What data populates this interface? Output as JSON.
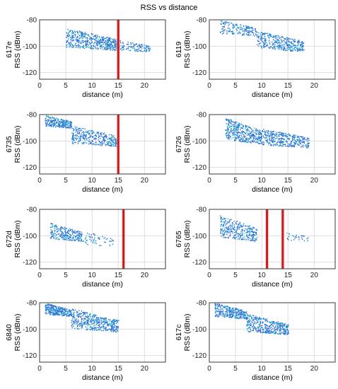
{
  "figure": {
    "title": "RSS vs distance"
  },
  "colors": {
    "point": "#2b6fd6",
    "point_alt": "#22cccc",
    "line": "#cc1a1a",
    "line_glow": "#ffb6c1"
  },
  "chart_data": [
    {
      "type": "scatter",
      "id": "617e",
      "ylabel": "617e\nRSS (dBm)",
      "xlabel": "distance (m)",
      "xlim": [
        0,
        24
      ],
      "ylim": [
        -125,
        -80
      ],
      "xticks": [
        0,
        5,
        10,
        15,
        20
      ],
      "yticks": [
        -80,
        -100,
        -120
      ],
      "grid": true,
      "show_xlabel": true,
      "vlines": [
        15
      ],
      "clusters": [
        {
          "x": [
            5,
            15
          ],
          "y": [
            -103,
            -86
          ],
          "n": 520
        },
        {
          "x": [
            15,
            21
          ],
          "y": [
            -104,
            -95
          ],
          "n": 120
        }
      ]
    },
    {
      "type": "scatter",
      "id": "6119",
      "ylabel": "6119\nRSS (dBm)",
      "xlabel": "distance (m)",
      "xlim": [
        0,
        24
      ],
      "ylim": [
        -125,
        -80
      ],
      "xticks": [
        0,
        5,
        10,
        15,
        20
      ],
      "yticks": [
        -80,
        -100,
        -120
      ],
      "grid": true,
      "show_xlabel": false,
      "vlines": [],
      "clusters": [
        {
          "x": [
            2,
            9
          ],
          "y": [
            -92,
            -80
          ],
          "n": 180
        },
        {
          "x": [
            9,
            18
          ],
          "y": [
            -104,
            -88
          ],
          "n": 360
        }
      ]
    },
    {
      "type": "scatter",
      "id": "6735",
      "ylabel": "6735\nRSS (dBm)",
      "xlabel": "distance (m)",
      "xlim": [
        0,
        24
      ],
      "ylim": [
        -125,
        -80
      ],
      "xticks": [
        0,
        5,
        10,
        15,
        20
      ],
      "yticks": [
        -80,
        -100,
        -120
      ],
      "grid": true,
      "show_xlabel": true,
      "vlines": [
        15
      ],
      "clusters": [
        {
          "x": [
            1,
            6
          ],
          "y": [
            -90,
            -80
          ],
          "n": 260
        },
        {
          "x": [
            6,
            15
          ],
          "y": [
            -104,
            -88
          ],
          "n": 360
        }
      ]
    },
    {
      "type": "scatter",
      "id": "6726",
      "ylabel": "6726\nRSS (dBm)",
      "xlabel": "distance (m)",
      "xlim": [
        0,
        24
      ],
      "ylim": [
        -125,
        -80
      ],
      "xticks": [
        0,
        5,
        10,
        15,
        20
      ],
      "yticks": [
        -80,
        -100,
        -120
      ],
      "grid": true,
      "show_xlabel": false,
      "vlines": [],
      "clusters": [
        {
          "x": [
            3,
            10
          ],
          "y": [
            -102,
            -82
          ],
          "n": 420
        },
        {
          "x": [
            10,
            19
          ],
          "y": [
            -105,
            -90
          ],
          "n": 360
        }
      ]
    },
    {
      "type": "scatter",
      "id": "672d",
      "ylabel": "672d\nRSS (dBm)",
      "xlabel": "distance (m)",
      "xlim": [
        0,
        24
      ],
      "ylim": [
        -125,
        -80
      ],
      "xticks": [
        0,
        5,
        10,
        15,
        20
      ],
      "yticks": [
        -80,
        -100,
        -120
      ],
      "grid": true,
      "show_xlabel": true,
      "vlines": [
        16
      ],
      "clusters": [
        {
          "x": [
            2,
            8
          ],
          "y": [
            -104,
            -90
          ],
          "n": 260
        },
        {
          "x": [
            8,
            14
          ],
          "y": [
            -108,
            -96
          ],
          "n": 60
        }
      ]
    },
    {
      "type": "scatter",
      "id": "6765",
      "ylabel": "6765\nRSS (dBm)",
      "xlabel": "distance (m)",
      "xlim": [
        0,
        24
      ],
      "ylim": [
        -125,
        -80
      ],
      "xticks": [
        0,
        5,
        10,
        15,
        20
      ],
      "yticks": [
        -80,
        -100,
        -120
      ],
      "grid": true,
      "show_xlabel": false,
      "vlines": [
        11,
        14
      ],
      "clusters": [
        {
          "x": [
            2,
            9
          ],
          "y": [
            -104,
            -84
          ],
          "n": 320
        },
        {
          "x": [
            14,
            19
          ],
          "y": [
            -104,
            -96
          ],
          "n": 30
        }
      ]
    },
    {
      "type": "scatter",
      "id": "6840",
      "ylabel": "6840\nRSS (dBm)",
      "xlabel": "distance (m)",
      "xlim": [
        0,
        24
      ],
      "ylim": [
        -125,
        -80
      ],
      "xticks": [
        0,
        5,
        10,
        15,
        20
      ],
      "yticks": [
        -80,
        -100,
        -120
      ],
      "grid": true,
      "show_xlabel": true,
      "vlines": [],
      "clusters": [
        {
          "x": [
            1,
            6
          ],
          "y": [
            -90,
            -80
          ],
          "n": 300
        },
        {
          "x": [
            6,
            15
          ],
          "y": [
            -102,
            -84
          ],
          "n": 460
        }
      ]
    },
    {
      "type": "scatter",
      "id": "617c",
      "ylabel": "617c\nRSS (dBm)",
      "xlabel": "distance (m)",
      "xlim": [
        0,
        24
      ],
      "ylim": [
        -125,
        -80
      ],
      "xticks": [
        0,
        5,
        10,
        15,
        20
      ],
      "yticks": [
        -80,
        -100,
        -120
      ],
      "grid": true,
      "show_xlabel": false,
      "vlines": [],
      "clusters": [
        {
          "x": [
            1,
            7
          ],
          "y": [
            -92,
            -80
          ],
          "n": 320
        },
        {
          "x": [
            7,
            15
          ],
          "y": [
            -104,
            -88
          ],
          "n": 420
        }
      ]
    }
  ]
}
